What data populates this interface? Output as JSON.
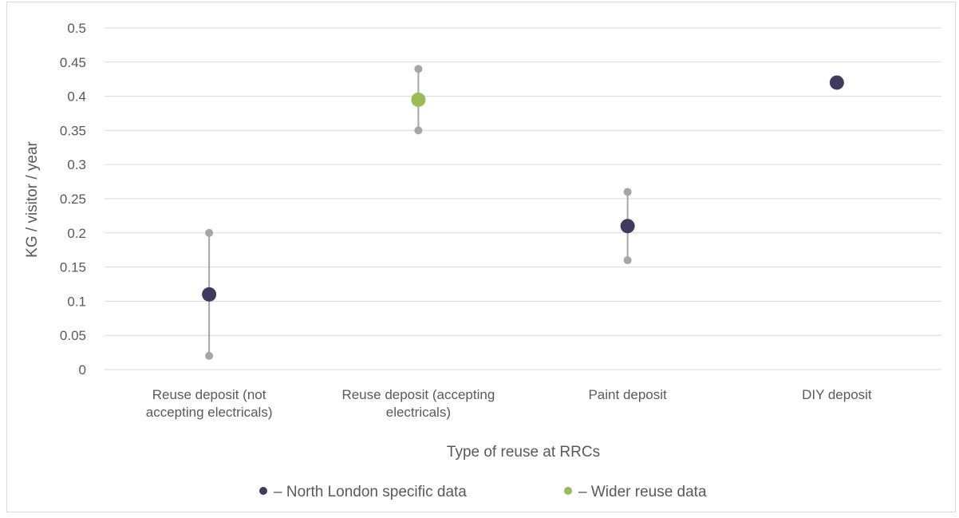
{
  "chart_data": {
    "type": "scatter",
    "title": "",
    "xlabel": "Type of reuse at RRCs",
    "ylabel": "KG / visitor / year",
    "ylim": [
      0,
      0.5
    ],
    "ytick_step": 0.05,
    "yticks": [
      "0",
      "0.05",
      "0.1",
      "0.15",
      "0.2",
      "0.25",
      "0.3",
      "0.35",
      "0.4",
      "0.45",
      "0.5"
    ],
    "grid": true,
    "legend_position": "bottom",
    "categories": [
      [
        "Reuse deposit (not",
        "accepting electricals)"
      ],
      [
        "Reuse deposit (accepting",
        "electricals)"
      ],
      [
        "Paint deposit"
      ],
      [
        "DIY deposit"
      ]
    ],
    "points": [
      {
        "category_index": 0,
        "value": 0.11,
        "low": 0.02,
        "high": 0.2,
        "series": 0
      },
      {
        "category_index": 1,
        "value": 0.395,
        "low": 0.35,
        "high": 0.44,
        "series": 1
      },
      {
        "category_index": 2,
        "value": 0.21,
        "low": 0.16,
        "high": 0.26,
        "series": 0
      },
      {
        "category_index": 3,
        "value": 0.42,
        "low": null,
        "high": null,
        "series": 0
      }
    ],
    "series": [
      {
        "name": "North London specific data",
        "color": "#403a5f"
      },
      {
        "name": "Wider reuse data",
        "color": "#9bbb59"
      }
    ],
    "range_color": "#a6a6a6",
    "legend": [
      {
        "label": "– North London specific data",
        "color": "#403a5f"
      },
      {
        "label": "– Wider reuse data",
        "color": "#9bbb59"
      }
    ]
  }
}
